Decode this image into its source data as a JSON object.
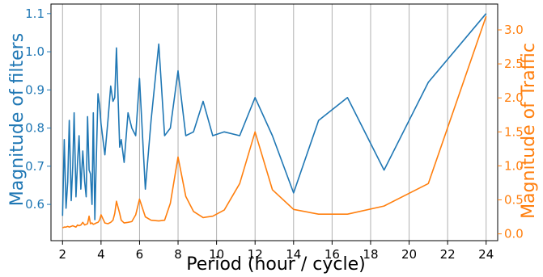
{
  "chart_data": {
    "type": "line",
    "title": "",
    "xlabel": "Period (hour / cycle)",
    "ylabel_left": "Magnitude of filters",
    "ylabel_right": "Magnitude of Traffic",
    "xlim": [
      1.4,
      24.6
    ],
    "ylim_left": [
      0.505,
      1.125
    ],
    "ylim_right": [
      -0.1,
      3.38
    ],
    "grid": "vertical",
    "colors": {
      "filters": "#1f77b4",
      "traffic": "#ff7f0e",
      "grid": "#b0b0b0",
      "axis": "#000000"
    },
    "x_ticks": [
      2,
      4,
      6,
      8,
      10,
      12,
      14,
      16,
      18,
      20,
      22,
      24
    ],
    "x_tick_labels": [
      "2",
      "4",
      "6",
      "8",
      "10",
      "12",
      "14",
      "16",
      "18",
      "20",
      "22",
      "24"
    ],
    "y_left_ticks": [
      0.6,
      0.7,
      0.8,
      0.9,
      1.0,
      1.1
    ],
    "y_left_tick_labels": [
      "0.6",
      "0.7",
      "0.8",
      "0.9",
      "1.0",
      "1.1"
    ],
    "y_right_ticks": [
      0.0,
      0.5,
      1.0,
      1.5,
      2.0,
      2.5,
      3.0
    ],
    "y_right_tick_labels": [
      "0.0",
      "0.5",
      "1.0",
      "1.5",
      "2.0",
      "2.5",
      "3.0"
    ],
    "series": [
      {
        "axis": "left",
        "color": "#1f77b4",
        "x": [
          2.0,
          2.09,
          2.18,
          2.27,
          2.35,
          2.45,
          2.53,
          2.6,
          2.7,
          2.78,
          2.86,
          2.95,
          3.05,
          3.15,
          3.23,
          3.3,
          3.38,
          3.45,
          3.53,
          3.6,
          3.68,
          3.75,
          3.84,
          3.92,
          4.0,
          4.2,
          4.36,
          4.5,
          4.62,
          4.71,
          4.8,
          4.97,
          5.05,
          5.2,
          5.4,
          5.6,
          5.8,
          6.0,
          6.3,
          6.6,
          7.0,
          7.3,
          7.6,
          8.0,
          8.4,
          8.8,
          9.3,
          9.8,
          10.4,
          11.2,
          12.0,
          12.9,
          14.0,
          15.3,
          16.8,
          18.7,
          21.0,
          24.0
        ],
        "values": [
          0.57,
          0.77,
          0.59,
          0.66,
          0.82,
          0.61,
          0.7,
          0.84,
          0.62,
          0.71,
          0.78,
          0.64,
          0.74,
          0.66,
          0.62,
          0.83,
          0.69,
          0.68,
          0.6,
          0.84,
          0.56,
          0.71,
          0.89,
          0.86,
          0.81,
          0.73,
          0.82,
          0.91,
          0.87,
          0.88,
          1.01,
          0.75,
          0.77,
          0.71,
          0.84,
          0.8,
          0.78,
          0.93,
          0.64,
          0.82,
          1.02,
          0.78,
          0.8,
          0.95,
          0.78,
          0.79,
          0.87,
          0.78,
          0.79,
          0.78,
          0.88,
          0.78,
          0.63,
          0.82,
          0.88,
          0.69,
          0.92,
          1.1
        ]
      },
      {
        "axis": "right",
        "color": "#ff7f0e",
        "x": [
          2.0,
          2.09,
          2.18,
          2.27,
          2.35,
          2.45,
          2.53,
          2.6,
          2.7,
          2.78,
          2.86,
          2.95,
          3.05,
          3.15,
          3.23,
          3.3,
          3.38,
          3.45,
          3.53,
          3.6,
          3.68,
          3.75,
          3.84,
          3.92,
          4.0,
          4.2,
          4.36,
          4.5,
          4.62,
          4.71,
          4.8,
          4.97,
          5.05,
          5.2,
          5.4,
          5.6,
          5.8,
          6.0,
          6.3,
          6.6,
          7.0,
          7.3,
          7.6,
          8.0,
          8.4,
          8.8,
          9.3,
          9.8,
          10.4,
          11.2,
          12.0,
          12.9,
          14.0,
          15.3,
          16.8,
          18.7,
          21.0,
          24.0
        ],
        "values": [
          0.09,
          0.1,
          0.1,
          0.11,
          0.1,
          0.11,
          0.12,
          0.11,
          0.1,
          0.13,
          0.12,
          0.13,
          0.17,
          0.13,
          0.14,
          0.15,
          0.26,
          0.15,
          0.16,
          0.14,
          0.15,
          0.16,
          0.17,
          0.2,
          0.28,
          0.16,
          0.15,
          0.17,
          0.2,
          0.3,
          0.48,
          0.3,
          0.2,
          0.16,
          0.17,
          0.18,
          0.28,
          0.51,
          0.25,
          0.2,
          0.19,
          0.2,
          0.45,
          1.13,
          0.55,
          0.33,
          0.24,
          0.26,
          0.35,
          0.74,
          1.5,
          0.65,
          0.36,
          0.29,
          0.29,
          0.41,
          0.74,
          3.2
        ]
      }
    ]
  }
}
